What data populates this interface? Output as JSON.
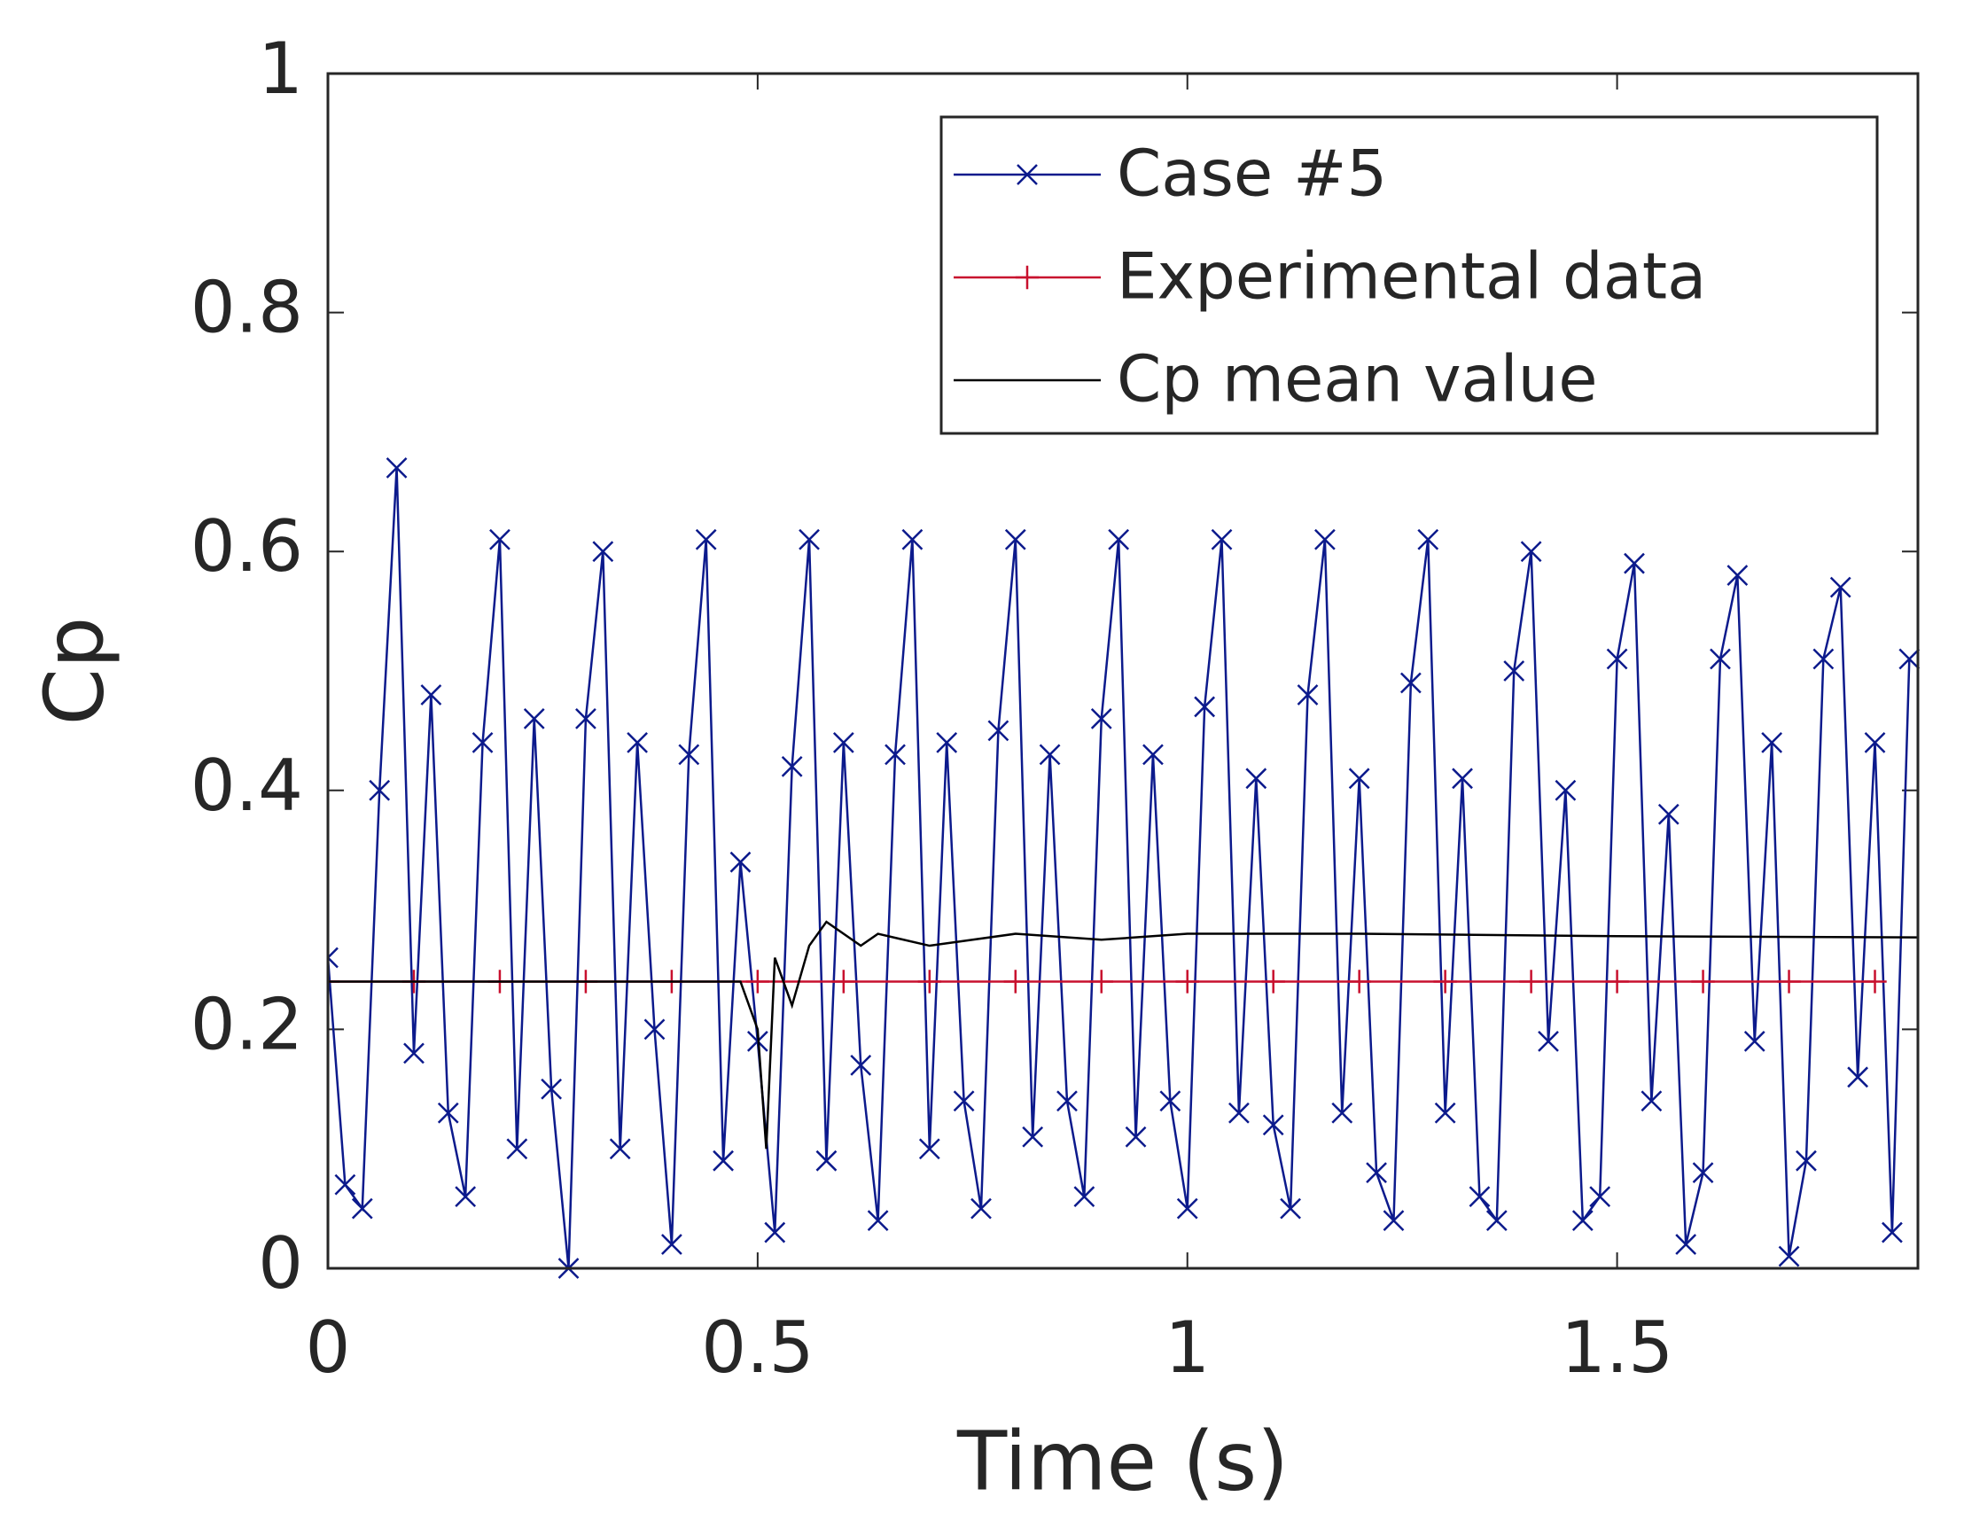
{
  "chart_data": {
    "type": "line",
    "xlabel": "Time (s)",
    "ylabel": "Cp",
    "xlim": [
      0,
      1.85
    ],
    "ylim": [
      0,
      1
    ],
    "xticks": [
      0,
      0.5,
      1,
      1.5
    ],
    "yticks": [
      0,
      0.2,
      0.4,
      0.6,
      0.8,
      1
    ],
    "legend": "upper right",
    "series": [
      {
        "name": "Case #5",
        "color": "#0c1a8c",
        "marker": "x",
        "x": [
          0,
          0.02,
          0.04,
          0.06,
          0.08,
          0.1,
          0.12,
          0.14,
          0.16,
          0.18,
          0.2,
          0.22,
          0.24,
          0.26,
          0.28,
          0.3,
          0.32,
          0.34,
          0.36,
          0.38,
          0.4,
          0.42,
          0.44,
          0.46,
          0.48,
          0.5,
          0.52,
          0.54,
          0.56,
          0.58,
          0.6,
          0.62,
          0.64,
          0.66,
          0.68,
          0.7,
          0.72,
          0.74,
          0.76,
          0.78,
          0.8,
          0.82,
          0.84,
          0.86,
          0.88,
          0.9,
          0.92,
          0.94,
          0.96,
          0.98,
          1,
          1.02,
          1.04,
          1.06,
          1.08,
          1.1,
          1.12,
          1.14,
          1.16,
          1.18,
          1.2,
          1.22,
          1.24,
          1.26,
          1.28,
          1.3,
          1.32,
          1.34,
          1.36,
          1.38,
          1.4,
          1.42,
          1.44,
          1.46,
          1.48,
          1.5,
          1.52,
          1.54,
          1.56,
          1.58,
          1.6,
          1.62,
          1.64,
          1.66,
          1.68,
          1.7,
          1.72,
          1.74,
          1.76,
          1.78,
          1.8,
          1.82,
          1.84
        ],
        "values": [
          0.26,
          0.07,
          0.05,
          0.4,
          0.67,
          0.18,
          0.48,
          0.13,
          0.06,
          0.44,
          0.61,
          0.1,
          0.46,
          0.15,
          0.0,
          0.46,
          0.6,
          0.1,
          0.44,
          0.2,
          0.02,
          0.43,
          0.61,
          0.09,
          0.34,
          0.19,
          0.03,
          0.42,
          0.61,
          0.09,
          0.44,
          0.17,
          0.04,
          0.43,
          0.61,
          0.1,
          0.44,
          0.14,
          0.05,
          0.45,
          0.61,
          0.11,
          0.43,
          0.14,
          0.06,
          0.46,
          0.61,
          0.11,
          0.43,
          0.14,
          0.05,
          0.47,
          0.61,
          0.13,
          0.41,
          0.12,
          0.05,
          0.48,
          0.61,
          0.13,
          0.41,
          0.08,
          0.04,
          0.49,
          0.61,
          0.13,
          0.41,
          0.06,
          0.04,
          0.5,
          0.6,
          0.19,
          0.4,
          0.04,
          0.06,
          0.51,
          0.59,
          0.14,
          0.38,
          0.02,
          0.08,
          0.51,
          0.58,
          0.19,
          0.44,
          0.01,
          0.09,
          0.51,
          0.57,
          0.16,
          0.44,
          0.03,
          0.51
        ]
      },
      {
        "name": "Experimental data",
        "color": "#c8102e",
        "marker": "+",
        "x": [
          0,
          0.1,
          0.2,
          0.3,
          0.4,
          0.5,
          0.6,
          0.7,
          0.8,
          0.9,
          1,
          1.1,
          1.2,
          1.3,
          1.4,
          1.5,
          1.6,
          1.7,
          1.8
        ],
        "values": [
          0.24,
          0.24,
          0.24,
          0.24,
          0.24,
          0.24,
          0.24,
          0.24,
          0.24,
          0.24,
          0.24,
          0.24,
          0.24,
          0.24,
          0.24,
          0.24,
          0.24,
          0.24,
          0.24
        ]
      },
      {
        "name": "Cp mean value",
        "color": "#000000",
        "marker": "none",
        "x": [
          0,
          0.1,
          0.2,
          0.3,
          0.4,
          0.48,
          0.5,
          0.51,
          0.52,
          0.54,
          0.56,
          0.58,
          0.62,
          0.64,
          0.7,
          0.8,
          0.9,
          1,
          1.2,
          1.5,
          1.85
        ],
        "values": [
          0.24,
          0.24,
          0.24,
          0.24,
          0.24,
          0.24,
          0.2,
          0.1,
          0.26,
          0.22,
          0.27,
          0.29,
          0.27,
          0.28,
          0.27,
          0.28,
          0.275,
          0.28,
          0.28,
          0.278,
          0.277
        ]
      }
    ]
  }
}
